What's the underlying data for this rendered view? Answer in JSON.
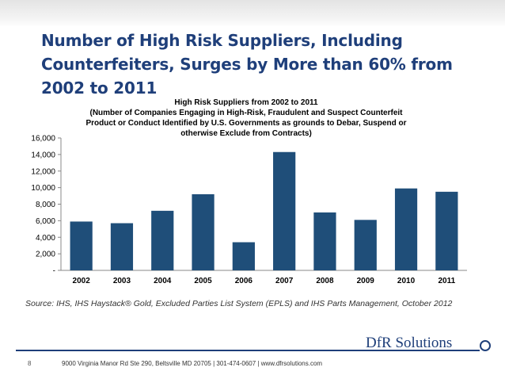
{
  "slide": {
    "title": "Number of High Risk Suppliers, Including Counterfeiters, Surges by More than 60% from 2002 to 2011",
    "source": "Source: IHS, IHS Haystack® Gold, Excluded Parties List System (EPLS) and IHS Parts Management, October 2012",
    "page_number": "8",
    "footer_address": "9000 Virginia Manor Rd Ste 290, Beltsville MD 20705 | 301-474-0607 | www.dfrsolutions.com",
    "logo_text": "DfR Solutions",
    "colors": {
      "title": "#1f3f7a",
      "bars": "#1f4e79",
      "accent": "#1f3f7a"
    }
  },
  "chart_data": {
    "type": "bar",
    "title": "High Risk Suppliers from 2002 to 2011",
    "subtitle_lines": [
      "(Number of Companies Engaging in High-Risk, Fraudulent and Suspect Counterfeit",
      "Product  or Conduct Identified by U.S. Governments as grounds to Debar, Suspend or",
      "otherwise Exclude from Contracts)"
    ],
    "categories": [
      "2002",
      "2003",
      "2004",
      "2005",
      "2006",
      "2007",
      "2008",
      "2009",
      "2010",
      "2011"
    ],
    "values": [
      5900,
      5700,
      7200,
      9200,
      3400,
      14300,
      7000,
      6100,
      9900,
      9500
    ],
    "ylim": [
      0,
      16000
    ],
    "y_ticks": [
      0,
      2000,
      4000,
      6000,
      8000,
      10000,
      12000,
      14000,
      16000
    ],
    "y_tick_labels": [
      "-",
      "2,000",
      "4,000",
      "6,000",
      "8,000",
      "10,000",
      "12,000",
      "14,000",
      "16,000"
    ],
    "grid": false,
    "legend": "none",
    "xlabel": "",
    "ylabel": ""
  }
}
